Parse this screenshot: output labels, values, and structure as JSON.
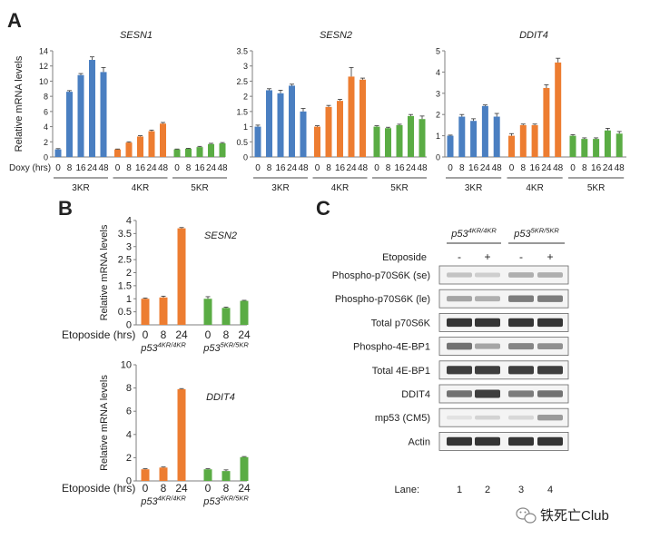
{
  "panels": {
    "A": "A",
    "B": "B",
    "C": "C"
  },
  "watermark": {
    "text": "铁死亡Club",
    "icon": "wechat-icon"
  },
  "colors": {
    "blue": "#4a7fc1",
    "orange": "#ed7d31",
    "green": "#5aac44",
    "axis": "#7f7f7f",
    "text": "#222222"
  },
  "chart_data": [
    {
      "type": "bar",
      "title": "SESN1",
      "ylabel": "Relative mRNA levels",
      "ylim": [
        0,
        14
      ],
      "yticks": [
        "0",
        "2",
        "4",
        "6",
        "8",
        "10",
        "12",
        "14"
      ],
      "x_row_label": "Doxy (hrs)",
      "categories": [
        "0",
        "8",
        "16",
        "24",
        "48",
        "0",
        "8",
        "16",
        "24",
        "48",
        "0",
        "8",
        "16",
        "24",
        "48"
      ],
      "groups": [
        {
          "name": "3KR",
          "color": "#4a7fc1",
          "values": [
            1.0,
            8.6,
            10.8,
            12.8,
            11.2
          ],
          "errors": [
            0.1,
            0.15,
            0.2,
            0.4,
            0.6
          ]
        },
        {
          "name": "4KR",
          "color": "#ed7d31",
          "values": [
            1.0,
            1.9,
            2.7,
            3.4,
            4.4
          ],
          "errors": [
            0.05,
            0.1,
            0.1,
            0.15,
            0.15
          ]
        },
        {
          "name": "5KR",
          "color": "#5aac44",
          "values": [
            1.0,
            1.1,
            1.3,
            1.7,
            1.8
          ],
          "errors": [
            0.05,
            0.05,
            0.1,
            0.1,
            0.1
          ]
        }
      ]
    },
    {
      "type": "bar",
      "title": "SESN2",
      "ylabel": "",
      "ylim": [
        0,
        3.5
      ],
      "yticks": [
        "0",
        "0.5",
        "1",
        "1.5",
        "2",
        "2.5",
        "3",
        "3.5"
      ],
      "x_row_label": "",
      "categories": [
        "0",
        "8",
        "16",
        "24",
        "48",
        "0",
        "8",
        "16",
        "24",
        "48",
        "0",
        "8",
        "16",
        "24",
        "48"
      ],
      "groups": [
        {
          "name": "3KR",
          "color": "#4a7fc1",
          "values": [
            1.0,
            2.2,
            2.1,
            2.35,
            1.5
          ],
          "errors": [
            0.05,
            0.05,
            0.1,
            0.05,
            0.1
          ]
        },
        {
          "name": "4KR",
          "color": "#ed7d31",
          "values": [
            1.0,
            1.65,
            1.85,
            2.65,
            2.55
          ],
          "errors": [
            0.03,
            0.05,
            0.05,
            0.3,
            0.05
          ]
        },
        {
          "name": "5KR",
          "color": "#5aac44",
          "values": [
            1.0,
            0.95,
            1.05,
            1.35,
            1.25
          ],
          "errors": [
            0.03,
            0.03,
            0.03,
            0.05,
            0.1
          ]
        }
      ]
    },
    {
      "type": "bar",
      "title": "DDIT4",
      "ylabel": "",
      "ylim": [
        0,
        5
      ],
      "yticks": [
        "0",
        "1",
        "2",
        "3",
        "4",
        "5"
      ],
      "x_row_label": "",
      "categories": [
        "0",
        "8",
        "16",
        "24",
        "48",
        "0",
        "8",
        "16",
        "24",
        "48",
        "0",
        "8",
        "16",
        "24",
        "48"
      ],
      "groups": [
        {
          "name": "3KR",
          "color": "#4a7fc1",
          "values": [
            1.0,
            1.9,
            1.7,
            2.4,
            1.9
          ],
          "errors": [
            0.03,
            0.1,
            0.1,
            0.05,
            0.15
          ]
        },
        {
          "name": "4KR",
          "color": "#ed7d31",
          "values": [
            1.0,
            1.5,
            1.5,
            3.25,
            4.45
          ],
          "errors": [
            0.1,
            0.05,
            0.05,
            0.15,
            0.2
          ]
        },
        {
          "name": "5KR",
          "color": "#5aac44",
          "values": [
            1.0,
            0.85,
            0.85,
            1.25,
            1.1
          ],
          "errors": [
            0.05,
            0.05,
            0.05,
            0.1,
            0.1
          ]
        }
      ]
    },
    {
      "type": "bar",
      "title": "SESN2",
      "ylabel": "Relative mRNA levels",
      "ylim": [
        0,
        4
      ],
      "yticks": [
        "0",
        "0.5",
        "1",
        "1.5",
        "2",
        "2.5",
        "3",
        "3.5",
        "4"
      ],
      "x_row_label": "Etoposide (hrs)",
      "categories": [
        "0",
        "8",
        "24",
        "0",
        "8",
        "24"
      ],
      "groups": [
        {
          "name": "p53",
          "sup": "4KR/4KR",
          "color": "#ed7d31",
          "values": [
            1.0,
            1.05,
            3.7
          ],
          "errors": [
            0.03,
            0.05,
            0.03
          ]
        },
        {
          "name": "p53",
          "sup": "5KR/5KR",
          "color": "#5aac44",
          "values": [
            1.0,
            0.65,
            0.92
          ],
          "errors": [
            0.08,
            0.03,
            0.02
          ]
        }
      ]
    },
    {
      "type": "bar",
      "title": "DDIT4",
      "ylabel": "Relative mRNA levels",
      "ylim": [
        0,
        10
      ],
      "yticks": [
        "0",
        "2",
        "4",
        "6",
        "8",
        "10"
      ],
      "x_row_label": "Etoposide (hrs)",
      "categories": [
        "0",
        "8",
        "24",
        "0",
        "8",
        "24"
      ],
      "groups": [
        {
          "name": "p53",
          "sup": "4KR/4KR",
          "color": "#ed7d31",
          "values": [
            1.0,
            1.15,
            7.9
          ],
          "errors": [
            0.05,
            0.05,
            0.05
          ]
        },
        {
          "name": "p53",
          "sup": "5KR/5KR",
          "color": "#5aac44",
          "values": [
            1.0,
            0.85,
            2.05
          ],
          "errors": [
            0.05,
            0.1,
            0.05
          ]
        }
      ]
    }
  ],
  "blot": {
    "groups": [
      {
        "name": "p53",
        "sup": "4KR/4KR"
      },
      {
        "name": "p53",
        "sup": "5KR/5KR"
      }
    ],
    "treatment_label": "Etoposide",
    "treatment_signs": [
      "-",
      "+",
      "-",
      "+"
    ],
    "rows": [
      {
        "label": "Phospho-p70S6K (se)",
        "intensity": [
          0.2,
          0.15,
          0.3,
          0.3
        ]
      },
      {
        "label": "Phospho-p70S6K (le)",
        "intensity": [
          0.35,
          0.3,
          0.55,
          0.55
        ]
      },
      {
        "label": "Total p70S6K",
        "intensity": [
          0.9,
          0.9,
          0.9,
          0.9
        ]
      },
      {
        "label": "Phospho-4E-BP1",
        "intensity": [
          0.6,
          0.35,
          0.5,
          0.45
        ]
      },
      {
        "label": "Total 4E-BP1",
        "intensity": [
          0.85,
          0.85,
          0.85,
          0.85
        ]
      },
      {
        "label": "DDIT4",
        "intensity": [
          0.6,
          0.85,
          0.55,
          0.6
        ]
      },
      {
        "label": "mp53 (CM5)",
        "intensity": [
          0.05,
          0.12,
          0.1,
          0.4
        ]
      },
      {
        "label": "Actin",
        "intensity": [
          0.9,
          0.9,
          0.9,
          0.9
        ]
      }
    ],
    "lane_label": "Lane:",
    "lanes": [
      "1",
      "2",
      "3",
      "4"
    ]
  }
}
